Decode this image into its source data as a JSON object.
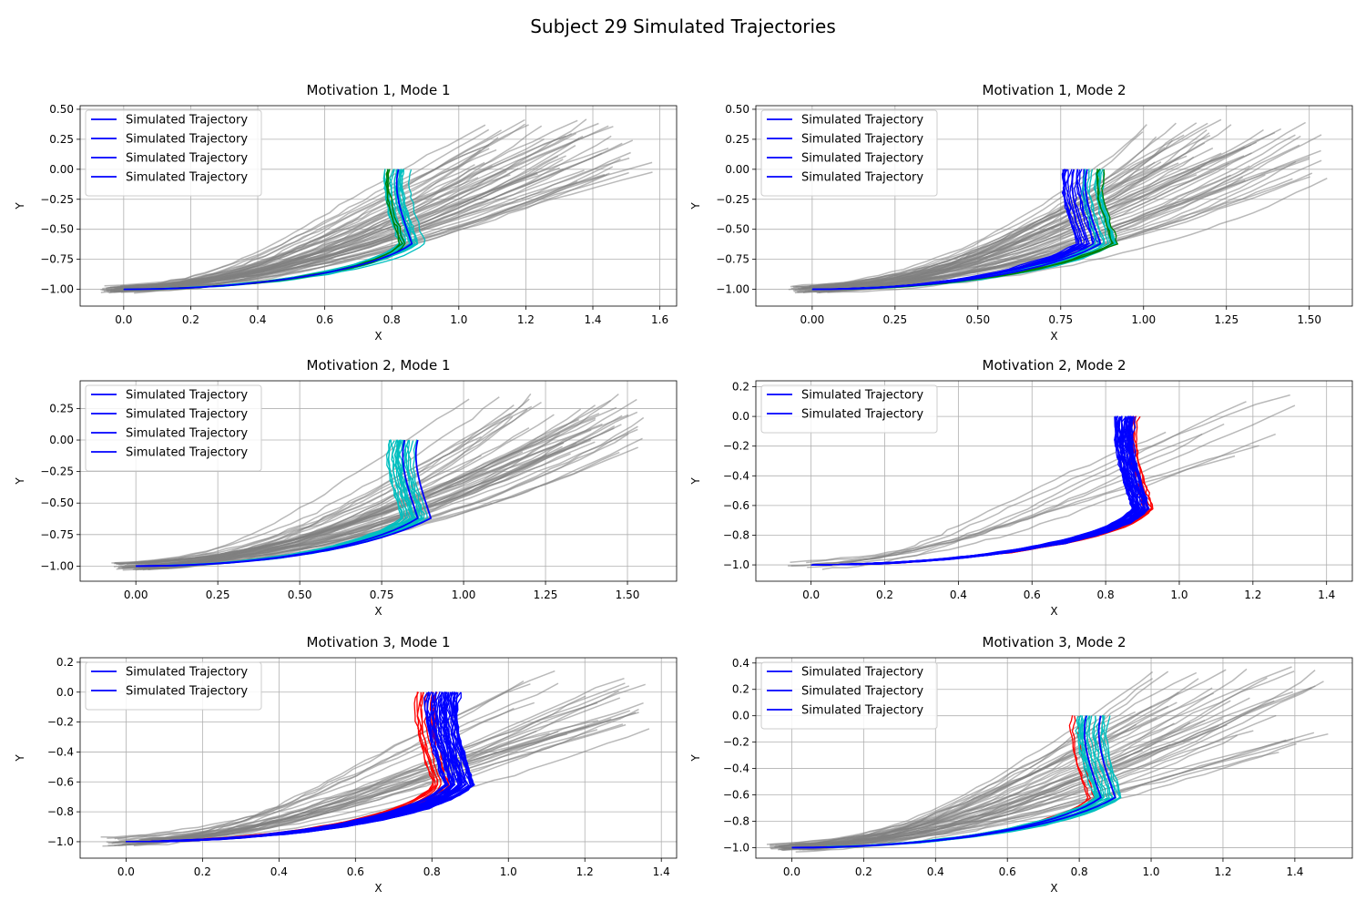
{
  "figure": {
    "suptitle": "Subject 29 Simulated Trajectories"
  },
  "colors": {
    "observed": "#808080",
    "simulated": "#0000ff",
    "cyan": "#00bfbf",
    "green": "#008000",
    "red": "#ff0000",
    "grid": "#b0b0b0"
  },
  "chart_data": [
    {
      "type": "line",
      "title": "Motivation 1, Mode 1",
      "xlabel": "X",
      "ylabel": "Y",
      "xlim": [
        -0.13,
        1.65
      ],
      "ylim": [
        -1.14,
        0.53
      ],
      "xticks": [
        0.0,
        0.2,
        0.4,
        0.6,
        0.8,
        1.0,
        1.2,
        1.4,
        1.6
      ],
      "yticks": [
        -1.0,
        -0.75,
        -0.5,
        -0.25,
        0.0,
        0.25,
        0.5
      ],
      "xtick_labels": [
        "0.0",
        "0.2",
        "0.4",
        "0.6",
        "0.8",
        "1.0",
        "1.2",
        "1.4",
        "1.6"
      ],
      "ytick_labels": [
        "−1.00",
        "−0.75",
        "−0.50",
        "−0.25",
        "0.00",
        "0.25",
        "0.50"
      ],
      "grid": true,
      "legend_loc": "upper left",
      "legend": [
        "Simulated Trajectory",
        "Simulated Trajectory",
        "Simulated Trajectory",
        "Simulated Trajectory"
      ],
      "observed": {
        "count": 55,
        "end_x": [
          1.05,
          1.58
        ],
        "end_y": [
          -0.1,
          0.42
        ],
        "bend": 0.55
      },
      "bundles": [
        {
          "color": "cyan",
          "count": 16,
          "end_x": [
            0.82,
            0.9
          ],
          "bow": 0.75
        },
        {
          "color": "green",
          "count": 3,
          "end_x": [
            0.82,
            0.84
          ],
          "bow": 0.8
        }
      ],
      "means": [
        {
          "color": "simulated",
          "end_x": 0.86,
          "bow": 0.75
        }
      ]
    },
    {
      "type": "line",
      "title": "Motivation 1, Mode 2",
      "xlabel": "X",
      "ylabel": "Y",
      "xlim": [
        -0.17,
        1.63
      ],
      "ylim": [
        -1.14,
        0.53
      ],
      "xticks": [
        0.0,
        0.25,
        0.5,
        0.75,
        1.0,
        1.25,
        1.5
      ],
      "yticks": [
        -1.0,
        -0.75,
        -0.5,
        -0.25,
        0.0,
        0.25,
        0.5
      ],
      "xtick_labels": [
        "0.00",
        "0.25",
        "0.50",
        "0.75",
        "1.00",
        "1.25",
        "1.50"
      ],
      "ytick_labels": [
        "−1.00",
        "−0.75",
        "−0.50",
        "−0.25",
        "0.00",
        "0.25",
        "0.50"
      ],
      "grid": true,
      "legend_loc": "upper left",
      "legend": [
        "Simulated Trajectory",
        "Simulated Trajectory",
        "Simulated Trajectory",
        "Simulated Trajectory"
      ],
      "observed": {
        "count": 55,
        "end_x": [
          1.0,
          1.55
        ],
        "end_y": [
          -0.1,
          0.45
        ],
        "bend": 0.6
      },
      "bundles": [
        {
          "color": "simulated",
          "count": 14,
          "end_x": [
            0.8,
            0.87
          ],
          "bow": 0.7
        },
        {
          "color": "cyan",
          "count": 12,
          "end_x": [
            0.85,
            0.92
          ],
          "bow": 0.72
        },
        {
          "color": "green",
          "count": 3,
          "end_x": [
            0.9,
            0.93
          ],
          "bow": 0.7
        }
      ],
      "means": [
        {
          "color": "simulated",
          "end_x": 0.83,
          "bow": 0.7
        },
        {
          "color": "simulated",
          "end_x": 0.87,
          "bow": 0.72
        }
      ]
    },
    {
      "type": "line",
      "title": "Motivation 2, Mode 1",
      "xlabel": "X",
      "ylabel": "Y",
      "xlim": [
        -0.17,
        1.65
      ],
      "ylim": [
        -1.12,
        0.47
      ],
      "xticks": [
        0.0,
        0.25,
        0.5,
        0.75,
        1.0,
        1.25,
        1.5
      ],
      "yticks": [
        -1.0,
        -0.75,
        -0.5,
        -0.25,
        0.0,
        0.25
      ],
      "xtick_labels": [
        "0.00",
        "0.25",
        "0.50",
        "0.75",
        "1.00",
        "1.25",
        "1.50"
      ],
      "ytick_labels": [
        "−1.00",
        "−0.75",
        "−0.50",
        "−0.25",
        "0.00",
        "0.25"
      ],
      "grid": true,
      "legend_loc": "upper left",
      "legend": [
        "Simulated Trajectory",
        "Simulated Trajectory",
        "Simulated Trajectory",
        "Simulated Trajectory"
      ],
      "observed": {
        "count": 50,
        "end_x": [
          1.0,
          1.58
        ],
        "end_y": [
          -0.15,
          0.38
        ],
        "bend": 0.6
      },
      "bundles": [
        {
          "color": "cyan",
          "count": 20,
          "end_x": [
            0.8,
            0.9
          ],
          "bow": 0.72
        }
      ],
      "means": [
        {
          "color": "simulated",
          "end_x": 0.86,
          "bow": 0.72
        },
        {
          "color": "simulated",
          "end_x": 0.9,
          "bow": 0.7
        }
      ]
    },
    {
      "type": "line",
      "title": "Motivation 2, Mode 2",
      "xlabel": "X",
      "ylabel": "Y",
      "xlim": [
        -0.15,
        1.47
      ],
      "ylim": [
        -1.11,
        0.24
      ],
      "xticks": [
        0.0,
        0.2,
        0.4,
        0.6,
        0.8,
        1.0,
        1.2,
        1.4
      ],
      "yticks": [
        -1.0,
        -0.8,
        -0.6,
        -0.4,
        -0.2,
        0.0,
        0.2
      ],
      "xtick_labels": [
        "0.0",
        "0.2",
        "0.4",
        "0.6",
        "0.8",
        "1.0",
        "1.2",
        "1.4"
      ],
      "ytick_labels": [
        "−1.0",
        "−0.8",
        "−0.6",
        "−0.4",
        "−0.2",
        "0.0",
        "0.2"
      ],
      "grid": true,
      "legend_loc": "upper left",
      "legend": [
        "Simulated Trajectory",
        "Simulated Trajectory"
      ],
      "observed": {
        "count": 9,
        "end_x": [
          0.95,
          1.38
        ],
        "end_y": [
          -0.3,
          0.18
        ],
        "bend": 0.45
      },
      "bundles": [
        {
          "color": "red",
          "count": 6,
          "end_x": [
            0.9,
            0.93
          ],
          "bow": 0.82
        },
        {
          "color": "simulated",
          "count": 36,
          "end_x": [
            0.87,
            0.92
          ],
          "bow": 0.82
        }
      ],
      "means": []
    },
    {
      "type": "line",
      "title": "Motivation 3, Mode 1",
      "xlabel": "X",
      "ylabel": "Y",
      "xlim": [
        -0.12,
        1.44
      ],
      "ylim": [
        -1.11,
        0.23
      ],
      "xticks": [
        0.0,
        0.2,
        0.4,
        0.6,
        0.8,
        1.0,
        1.2,
        1.4
      ],
      "yticks": [
        -1.0,
        -0.8,
        -0.6,
        -0.4,
        -0.2,
        0.0,
        0.2
      ],
      "xtick_labels": [
        "0.0",
        "0.2",
        "0.4",
        "0.6",
        "0.8",
        "1.0",
        "1.2",
        "1.4"
      ],
      "ytick_labels": [
        "−1.0",
        "−0.8",
        "−0.6",
        "−0.4",
        "−0.2",
        "0.0",
        "0.2"
      ],
      "grid": true,
      "legend_loc": "upper left",
      "legend": [
        "Simulated Trajectory",
        "Simulated Trajectory"
      ],
      "observed": {
        "count": 30,
        "end_x": [
          1.0,
          1.38
        ],
        "end_y": [
          -0.3,
          0.16
        ],
        "bend": 0.5
      },
      "bundles": [
        {
          "color": "red",
          "count": 10,
          "end_x": [
            0.8,
            0.85
          ],
          "bow": 0.8
        },
        {
          "color": "simulated",
          "count": 40,
          "end_x": [
            0.83,
            0.91
          ],
          "bow": 0.78
        }
      ],
      "means": []
    },
    {
      "type": "line",
      "title": "Motivation 3, Mode 2",
      "xlabel": "X",
      "ylabel": "Y",
      "xlim": [
        -0.1,
        1.56
      ],
      "ylim": [
        -1.08,
        0.44
      ],
      "xticks": [
        0.0,
        0.2,
        0.4,
        0.6,
        0.8,
        1.0,
        1.2,
        1.4
      ],
      "yticks": [
        -1.0,
        -0.8,
        -0.6,
        -0.4,
        -0.2,
        0.0,
        0.2,
        0.4
      ],
      "xtick_labels": [
        "0.0",
        "0.2",
        "0.4",
        "0.6",
        "0.8",
        "1.0",
        "1.2",
        "1.4"
      ],
      "ytick_labels": [
        "−1.0",
        "−0.8",
        "−0.6",
        "−0.4",
        "−0.2",
        "0.0",
        "0.2",
        "0.4"
      ],
      "grid": true,
      "legend_loc": "upper left",
      "legend": [
        "Simulated Trajectory",
        "Simulated Trajectory",
        "Simulated Trajectory"
      ],
      "observed": {
        "count": 45,
        "end_x": [
          0.95,
          1.49
        ],
        "end_y": [
          -0.3,
          0.39
        ],
        "bend": 0.55
      },
      "bundles": [
        {
          "color": "red",
          "count": 3,
          "end_x": [
            0.82,
            0.85
          ],
          "bow": 0.8
        },
        {
          "color": "cyan",
          "count": 18,
          "end_x": [
            0.84,
            0.92
          ],
          "bow": 0.75
        }
      ],
      "means": [
        {
          "color": "simulated",
          "end_x": 0.86,
          "bow": 0.75
        },
        {
          "color": "simulated",
          "end_x": 0.9,
          "bow": 0.73
        }
      ]
    }
  ]
}
